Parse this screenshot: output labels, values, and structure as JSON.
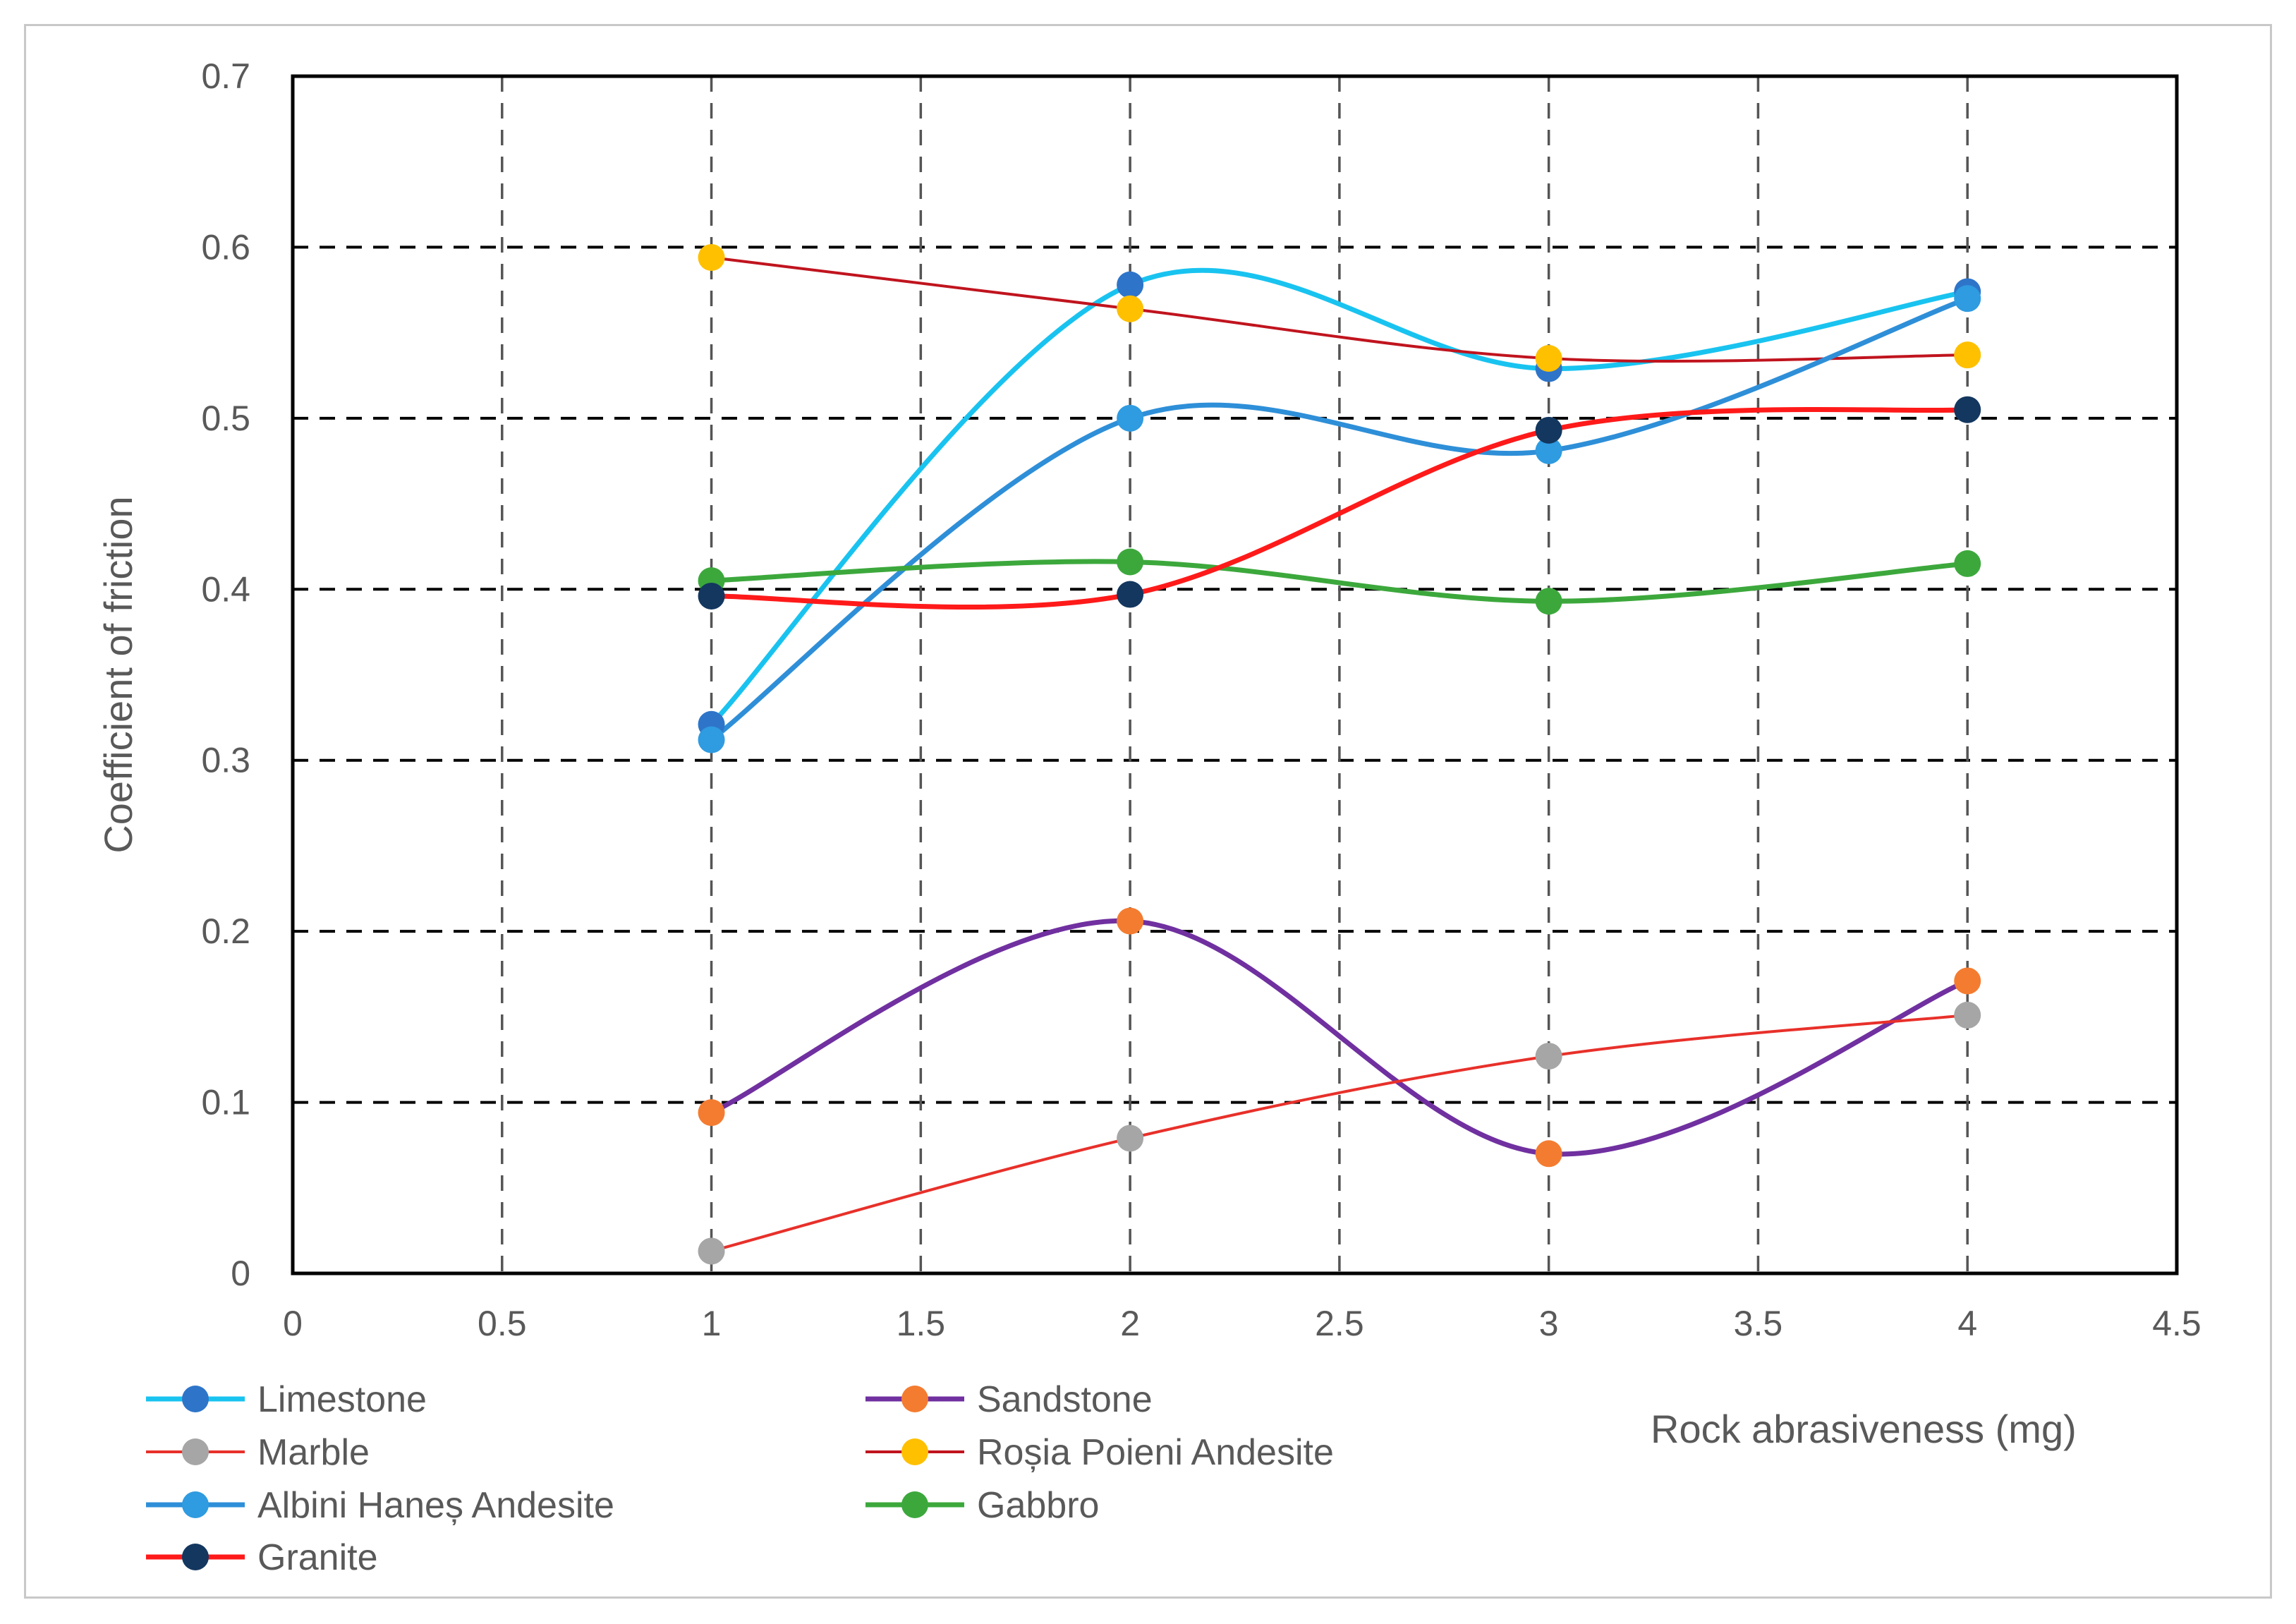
{
  "chart_data": {
    "type": "scatter",
    "xlabel": "Rock abrasiveness (mg)",
    "ylabel": "Coefficient of friction",
    "xlim": [
      0,
      4.5
    ],
    "ylim": [
      0,
      0.7
    ],
    "x_ticks": [
      "0",
      "0.5",
      "1",
      "1.5",
      "2",
      "2.5",
      "3",
      "3.5",
      "4",
      "4.5"
    ],
    "y_ticks": [
      "0",
      "0.1",
      "0.2",
      "0.3",
      "0.4",
      "0.5",
      "0.6",
      "0.7"
    ],
    "grid": true,
    "smooth_lines": true,
    "legend_position": "bottom-left",
    "series": [
      {
        "name": "Limestone",
        "line_color": "#19c3f0",
        "marker_color": "#2e75c9",
        "points": [
          [
            1,
            0.321
          ],
          [
            2,
            0.578
          ],
          [
            3,
            0.529
          ],
          [
            4,
            0.574
          ]
        ]
      },
      {
        "name": "Sandstone",
        "line_color": "#7030a0",
        "marker_color": "#f47c30",
        "points": [
          [
            1,
            0.094
          ],
          [
            2,
            0.206
          ],
          [
            3,
            0.07
          ],
          [
            4,
            0.171
          ]
        ]
      },
      {
        "name": "Marble",
        "line_color": "#e8302a",
        "marker_color": "#a6a6a6",
        "points": [
          [
            1,
            0.013
          ],
          [
            2,
            0.079
          ],
          [
            3,
            0.127
          ],
          [
            4,
            0.151
          ]
        ]
      },
      {
        "name": "Roșia Poieni Andesite",
        "line_color": "#c0141e",
        "marker_color": "#ffc000",
        "points": [
          [
            1,
            0.594
          ],
          [
            2,
            0.564
          ],
          [
            3,
            0.535
          ],
          [
            4,
            0.537
          ]
        ]
      },
      {
        "name": "Albini Haneș Andesite",
        "line_color": "#2e8fd8",
        "marker_color": "#2f9be0",
        "points": [
          [
            1,
            0.312
          ],
          [
            2,
            0.5
          ],
          [
            3,
            0.481
          ],
          [
            4,
            0.57
          ]
        ]
      },
      {
        "name": "Gabbro",
        "line_color": "#3ca83c",
        "marker_color": "#3ca83c",
        "points": [
          [
            1,
            0.405
          ],
          [
            2,
            0.416
          ],
          [
            3,
            0.393
          ],
          [
            4,
            0.415
          ]
        ]
      },
      {
        "name": "Granite",
        "line_color": "#ff1a1a",
        "marker_color": "#13375f",
        "points": [
          [
            1,
            0.396
          ],
          [
            2,
            0.397
          ],
          [
            3,
            0.493
          ],
          [
            4,
            0.505
          ]
        ]
      }
    ]
  }
}
